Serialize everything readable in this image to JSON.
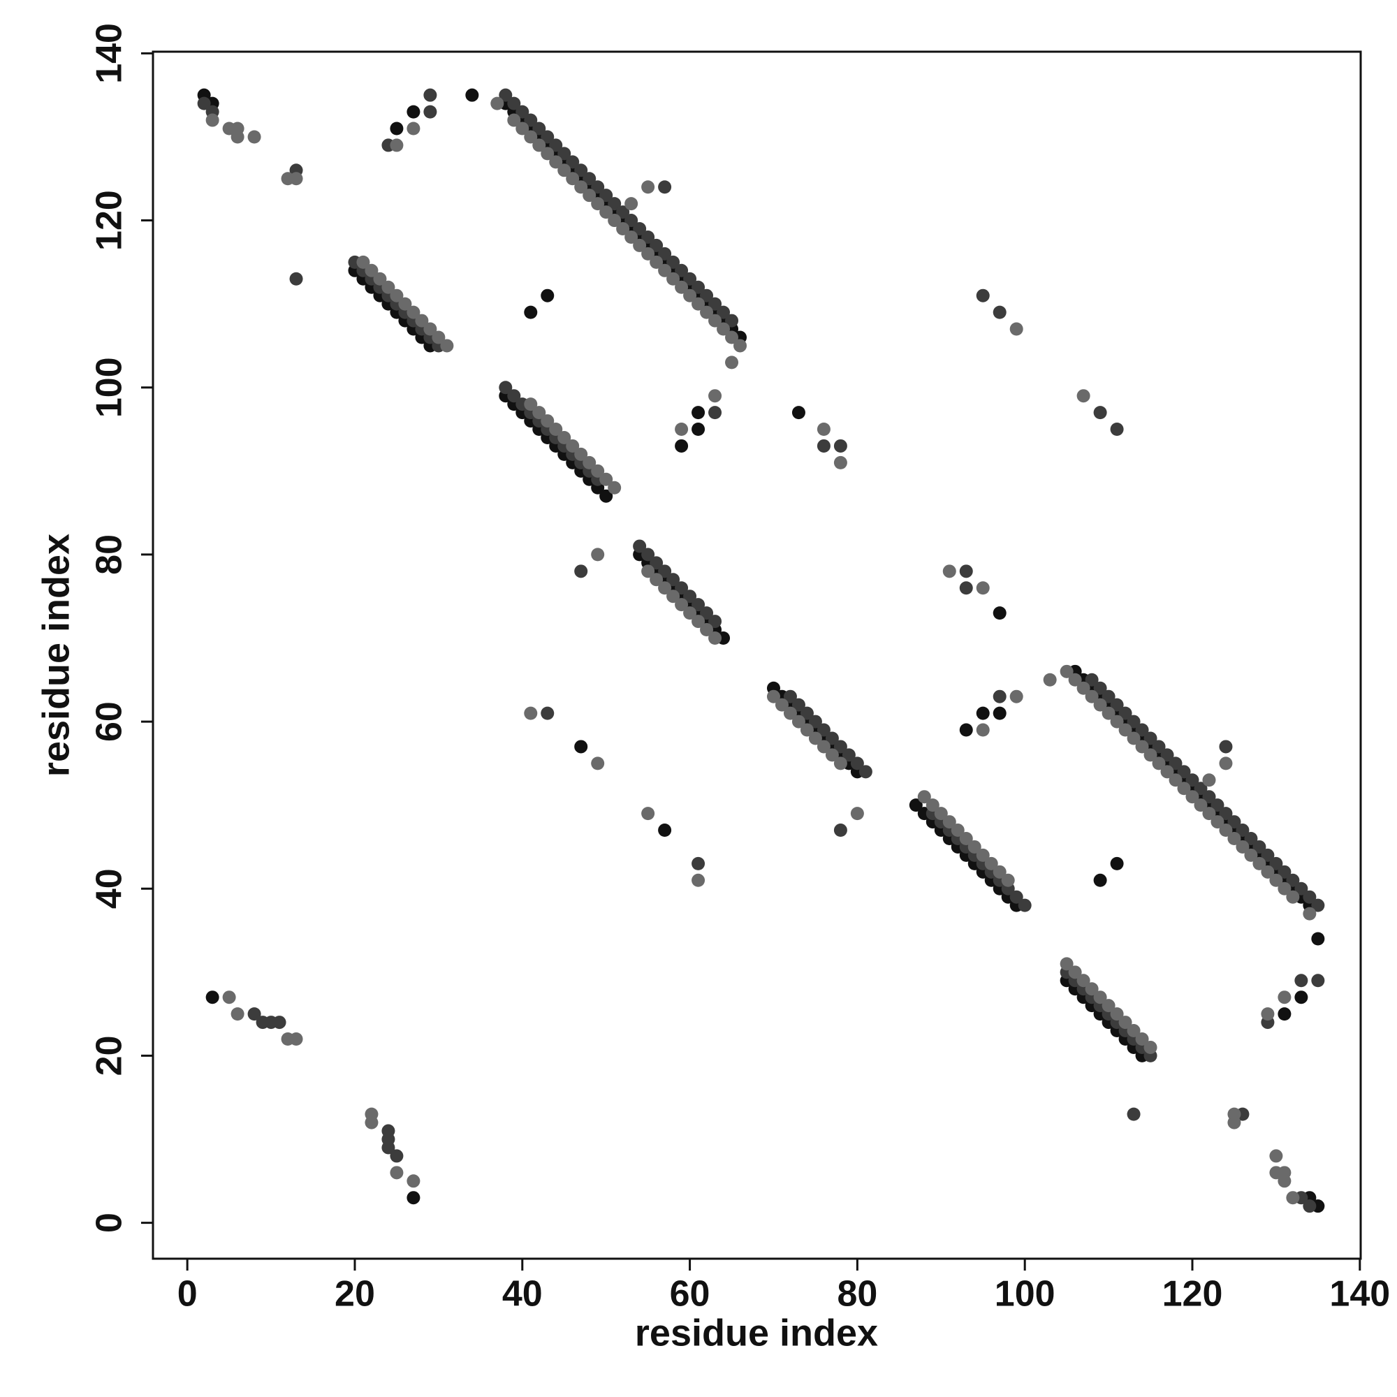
{
  "chart_data": {
    "type": "scatter",
    "xlabel": "residue index",
    "ylabel": "residue index",
    "xlim": [
      -4.1,
      140.1
    ],
    "ylim": [
      -4.3,
      140.2
    ],
    "xticks": [
      0,
      20,
      40,
      60,
      80,
      100,
      120,
      140
    ],
    "yticks": [
      0,
      20,
      40,
      60,
      80,
      100,
      120,
      140
    ],
    "series": [
      {
        "color": "#111111",
        "x": [
          38,
          39,
          40,
          41,
          42,
          43,
          44,
          45,
          46,
          47,
          48,
          49,
          50,
          51,
          52,
          53,
          54,
          55,
          56,
          57,
          58,
          59,
          60,
          61,
          62,
          63,
          64,
          65,
          66,
          20,
          21,
          22,
          23,
          24,
          25,
          26,
          27,
          28,
          29,
          38,
          39,
          40,
          41,
          42,
          43,
          44,
          45,
          46,
          47,
          48,
          49,
          50,
          54,
          55,
          56,
          57,
          58,
          59,
          60,
          61,
          62,
          63,
          64,
          2,
          3,
          27,
          34,
          41,
          43,
          59,
          61,
          61,
          73,
          47,
          3,
          25,
          134,
          133,
          132,
          131,
          130,
          129,
          128,
          127,
          126,
          125,
          124,
          123,
          122,
          121,
          120,
          119,
          118,
          117,
          116,
          115,
          114,
          113,
          112,
          111,
          110,
          109,
          108,
          107,
          106,
          114,
          113,
          112,
          111,
          110,
          109,
          108,
          107,
          106,
          105,
          99,
          98,
          97,
          96,
          95,
          94,
          93,
          92,
          91,
          90,
          89,
          88,
          87,
          80,
          79,
          78,
          77,
          76,
          75,
          74,
          73,
          72,
          71,
          70,
          135,
          134,
          133,
          135,
          109,
          111,
          93,
          97,
          95,
          97,
          57,
          27,
          131
        ],
        "values": [
          134,
          133,
          132,
          131,
          130,
          129,
          128,
          127,
          126,
          125,
          124,
          123,
          122,
          121,
          120,
          119,
          118,
          117,
          116,
          115,
          114,
          113,
          112,
          111,
          110,
          109,
          108,
          107,
          106,
          114,
          113,
          112,
          111,
          110,
          109,
          108,
          107,
          106,
          105,
          99,
          98,
          97,
          96,
          95,
          94,
          93,
          92,
          91,
          90,
          89,
          88,
          87,
          80,
          79,
          78,
          77,
          76,
          75,
          74,
          73,
          72,
          71,
          70,
          135,
          134,
          133,
          135,
          109,
          111,
          93,
          97,
          95,
          97,
          57,
          27,
          131,
          38,
          39,
          40,
          41,
          42,
          43,
          44,
          45,
          46,
          47,
          48,
          49,
          50,
          51,
          52,
          53,
          54,
          55,
          56,
          57,
          58,
          59,
          60,
          61,
          62,
          63,
          64,
          65,
          66,
          20,
          21,
          22,
          23,
          24,
          25,
          26,
          27,
          28,
          29,
          38,
          39,
          40,
          41,
          42,
          43,
          44,
          45,
          46,
          47,
          48,
          49,
          50,
          54,
          55,
          56,
          57,
          58,
          59,
          60,
          61,
          62,
          63,
          64,
          2,
          3,
          27,
          34,
          41,
          43,
          59,
          61,
          61,
          73,
          47,
          3,
          25
        ]
      },
      {
        "color": "#3c3c3c",
        "x": [
          38,
          39,
          40,
          41,
          42,
          43,
          44,
          45,
          46,
          47,
          48,
          49,
          50,
          51,
          52,
          53,
          54,
          55,
          56,
          57,
          58,
          59,
          60,
          61,
          62,
          63,
          64,
          65,
          20,
          21,
          22,
          23,
          24,
          25,
          26,
          27,
          28,
          29,
          30,
          38,
          39,
          40,
          41,
          42,
          43,
          44,
          45,
          46,
          47,
          48,
          49,
          54,
          55,
          56,
          57,
          58,
          59,
          60,
          61,
          62,
          63,
          2,
          3,
          29,
          29,
          24,
          13,
          57,
          78,
          76,
          47,
          97,
          95,
          63,
          13,
          11,
          9,
          10,
          8,
          43,
          135,
          134,
          133,
          132,
          131,
          130,
          129,
          128,
          127,
          126,
          125,
          124,
          123,
          122,
          121,
          120,
          119,
          118,
          117,
          116,
          115,
          114,
          113,
          112,
          111,
          110,
          109,
          108,
          115,
          114,
          113,
          112,
          111,
          110,
          109,
          108,
          107,
          106,
          105,
          100,
          99,
          98,
          97,
          96,
          95,
          94,
          93,
          92,
          91,
          90,
          89,
          81,
          80,
          79,
          78,
          77,
          76,
          75,
          74,
          73,
          72,
          134,
          133,
          133,
          135,
          129,
          126,
          124,
          93,
          93,
          78,
          109,
          111,
          97,
          113,
          24,
          24,
          24,
          25,
          61
        ],
        "values": [
          135,
          134,
          133,
          132,
          131,
          130,
          129,
          128,
          127,
          126,
          125,
          124,
          123,
          122,
          121,
          120,
          119,
          118,
          117,
          116,
          115,
          114,
          113,
          112,
          111,
          110,
          109,
          108,
          115,
          114,
          113,
          112,
          111,
          110,
          109,
          108,
          107,
          106,
          105,
          100,
          99,
          98,
          97,
          96,
          95,
          94,
          93,
          92,
          91,
          90,
          89,
          81,
          80,
          79,
          78,
          77,
          76,
          75,
          74,
          73,
          72,
          134,
          133,
          133,
          135,
          129,
          126,
          124,
          93,
          93,
          78,
          109,
          111,
          97,
          113,
          24,
          24,
          24,
          25,
          61,
          38,
          39,
          40,
          41,
          42,
          43,
          44,
          45,
          46,
          47,
          48,
          49,
          50,
          51,
          52,
          53,
          54,
          55,
          56,
          57,
          58,
          59,
          60,
          61,
          62,
          63,
          64,
          65,
          20,
          21,
          22,
          23,
          24,
          25,
          26,
          27,
          28,
          29,
          30,
          38,
          39,
          40,
          41,
          42,
          43,
          44,
          45,
          46,
          47,
          48,
          49,
          54,
          55,
          56,
          57,
          58,
          59,
          60,
          61,
          62,
          63,
          2,
          3,
          29,
          29,
          24,
          13,
          57,
          78,
          76,
          47,
          97,
          95,
          63,
          13,
          11,
          9,
          10,
          8,
          43
        ]
      },
      {
        "color": "#6a6a6a",
        "x": [
          39,
          40,
          41,
          42,
          43,
          44,
          45,
          46,
          47,
          48,
          49,
          50,
          51,
          52,
          53,
          54,
          55,
          56,
          57,
          58,
          59,
          60,
          61,
          62,
          63,
          64,
          65,
          66,
          21,
          22,
          23,
          24,
          25,
          26,
          27,
          28,
          29,
          30,
          31,
          41,
          42,
          43,
          44,
          45,
          46,
          47,
          48,
          49,
          50,
          51,
          55,
          56,
          57,
          58,
          59,
          60,
          61,
          62,
          63,
          3,
          5,
          6,
          6,
          8,
          12,
          13,
          25,
          27,
          12,
          13,
          6,
          5,
          55,
          53,
          63,
          99,
          59,
          76,
          78,
          49,
          41,
          49,
          65,
          37,
          132,
          131,
          130,
          129,
          128,
          127,
          126,
          125,
          124,
          123,
          122,
          121,
          120,
          119,
          118,
          117,
          116,
          115,
          114,
          113,
          112,
          111,
          110,
          109,
          108,
          107,
          106,
          105,
          115,
          114,
          113,
          112,
          111,
          110,
          109,
          108,
          107,
          106,
          105,
          98,
          97,
          96,
          95,
          94,
          93,
          92,
          91,
          90,
          89,
          88,
          78,
          77,
          76,
          75,
          74,
          73,
          72,
          71,
          70,
          132,
          131,
          131,
          130,
          130,
          125,
          125,
          129,
          131,
          22,
          22,
          25,
          27,
          124,
          122,
          99,
          107,
          95,
          95,
          91,
          80,
          61,
          55,
          103,
          134
        ],
        "values": [
          132,
          131,
          130,
          129,
          128,
          127,
          126,
          125,
          124,
          123,
          122,
          121,
          120,
          119,
          118,
          117,
          116,
          115,
          114,
          113,
          112,
          111,
          110,
          109,
          108,
          107,
          106,
          105,
          115,
          114,
          113,
          112,
          111,
          110,
          109,
          108,
          107,
          106,
          105,
          98,
          97,
          96,
          95,
          94,
          93,
          92,
          91,
          90,
          89,
          88,
          78,
          77,
          76,
          75,
          74,
          73,
          72,
          71,
          70,
          132,
          131,
          131,
          130,
          130,
          125,
          125,
          129,
          131,
          22,
          22,
          25,
          27,
          124,
          122,
          99,
          107,
          95,
          95,
          91,
          80,
          61,
          55,
          103,
          134,
          39,
          40,
          41,
          42,
          43,
          44,
          45,
          46,
          47,
          48,
          49,
          50,
          51,
          52,
          53,
          54,
          55,
          56,
          57,
          58,
          59,
          60,
          61,
          62,
          63,
          64,
          65,
          66,
          21,
          22,
          23,
          24,
          25,
          26,
          27,
          28,
          29,
          30,
          31,
          41,
          42,
          43,
          44,
          45,
          46,
          47,
          48,
          49,
          50,
          51,
          55,
          56,
          57,
          58,
          59,
          60,
          61,
          62,
          63,
          3,
          5,
          6,
          6,
          8,
          12,
          13,
          25,
          27,
          12,
          13,
          6,
          5,
          55,
          53,
          63,
          99,
          59,
          76,
          78,
          49,
          41,
          49,
          65,
          37
        ]
      }
    ]
  }
}
